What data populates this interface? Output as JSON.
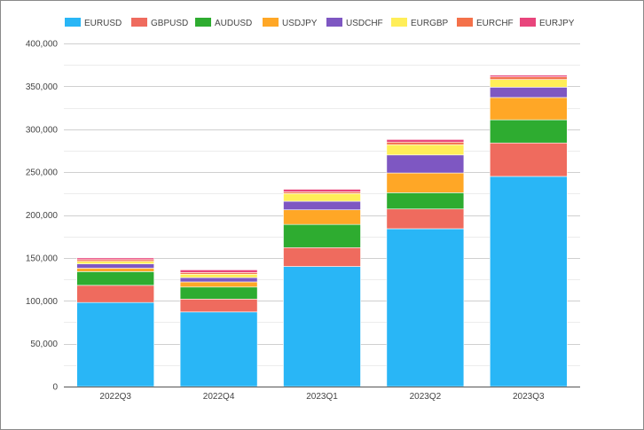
{
  "chart_data": {
    "type": "bar",
    "stacked": true,
    "categories": [
      "2022Q3",
      "2022Q4",
      "2023Q1",
      "2023Q2",
      "2023Q3"
    ],
    "ylim": [
      0,
      400000
    ],
    "yticks": [
      0,
      50000,
      100000,
      150000,
      200000,
      250000,
      300000,
      350000,
      400000
    ],
    "ytick_labels": [
      "0",
      "50,000",
      "100,000",
      "150,000",
      "200,000",
      "250,000",
      "300,000",
      "350,000",
      "400,000"
    ],
    "grid": true,
    "legend_position": "top-left",
    "series": [
      {
        "name": "EURUSD",
        "color": "#29b6f6",
        "values": [
          98000,
          87000,
          140000,
          184000,
          245000
        ]
      },
      {
        "name": "GBPUSD",
        "color": "#ef6b5e",
        "values": [
          20000,
          15000,
          22000,
          23000,
          39000
        ]
      },
      {
        "name": "AUDUSD",
        "color": "#2eac30",
        "values": [
          16000,
          14000,
          27000,
          19000,
          27000
        ]
      },
      {
        "name": "USDJPY",
        "color": "#ffa726",
        "values": [
          4000,
          6000,
          17000,
          23000,
          26000
        ]
      },
      {
        "name": "USDCHF",
        "color": "#7e57c2",
        "values": [
          5000,
          5000,
          10000,
          21000,
          12000
        ]
      },
      {
        "name": "EURGBP",
        "color": "#ffee58",
        "values": [
          3000,
          4000,
          9000,
          12000,
          9000
        ]
      },
      {
        "name": "EURCHF",
        "color": "#f4714a",
        "values": [
          2000,
          2000,
          2000,
          3000,
          3000
        ]
      },
      {
        "name": "EURJPY",
        "color": "#e8457c",
        "values": [
          2000,
          3000,
          3000,
          3000,
          2000
        ]
      }
    ]
  }
}
